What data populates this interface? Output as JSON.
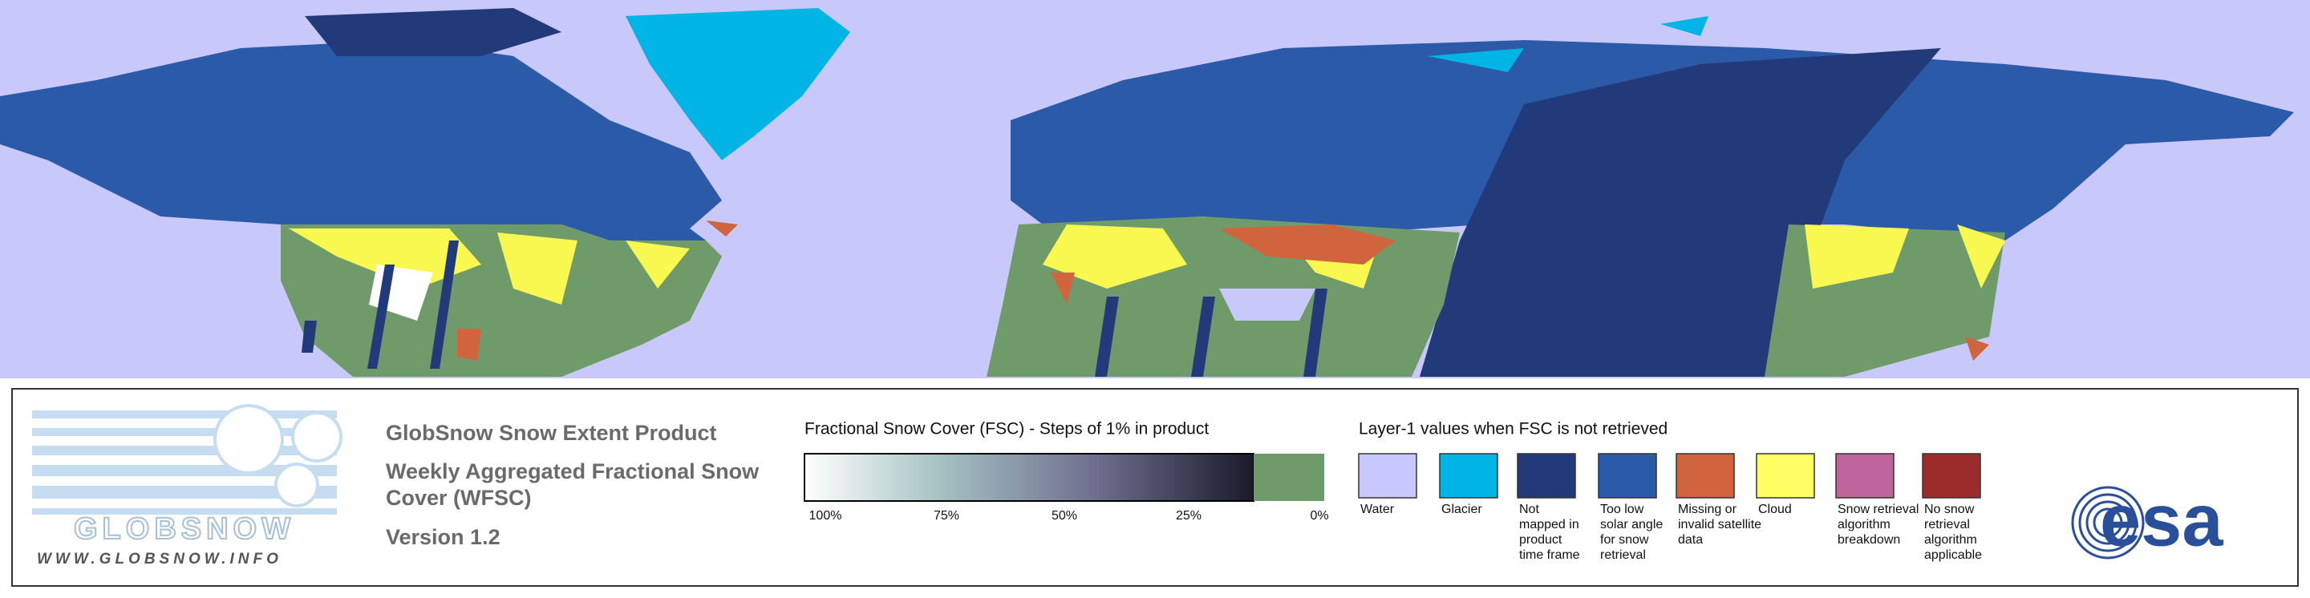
{
  "header": {
    "title": "GlobSnow Snow Extent Product",
    "subtitle": [
      "Weekly Aggregated Fractional Snow",
      "Cover (WFSC)"
    ],
    "version": "Version 1.2"
  },
  "logo": {
    "name": "GLOBSNOW",
    "url": "WWW.GLOBSNOW.INFO"
  },
  "colorbar": {
    "title": "Fractional Snow Cover (FSC) - Steps of 1% in product",
    "labels": [
      "100%",
      "75%",
      "50%",
      "25%",
      "0%"
    ],
    "no_snow_color": "#6f9a6a"
  },
  "layer1": {
    "title": "Layer-1 values when FSC is not retrieved",
    "items": [
      {
        "label": [
          "Water"
        ],
        "color": "#c8c8ff"
      },
      {
        "label": [
          "Glacier"
        ],
        "color": "#00b4e6"
      },
      {
        "label": [
          "Not",
          "mapped in",
          "product",
          "time frame"
        ],
        "color": "#233a7a"
      },
      {
        "label": [
          "Too low",
          "solar angle",
          "for snow",
          "retrieval"
        ],
        "color": "#2a5aa8"
      },
      {
        "label": [
          "Missing or",
          "invalid satellite",
          "data"
        ],
        "color": "#d0643c"
      },
      {
        "label": [
          "Cloud"
        ],
        "color": "#ffff64"
      },
      {
        "label": [
          "Snow retrieval",
          "algorithm",
          "breakdown"
        ],
        "color": "#c0649c"
      },
      {
        "label": [
          "No snow",
          "retrieval",
          "algorithm",
          "applicable"
        ],
        "color": "#9c2c2c"
      }
    ]
  },
  "agency": "esa"
}
